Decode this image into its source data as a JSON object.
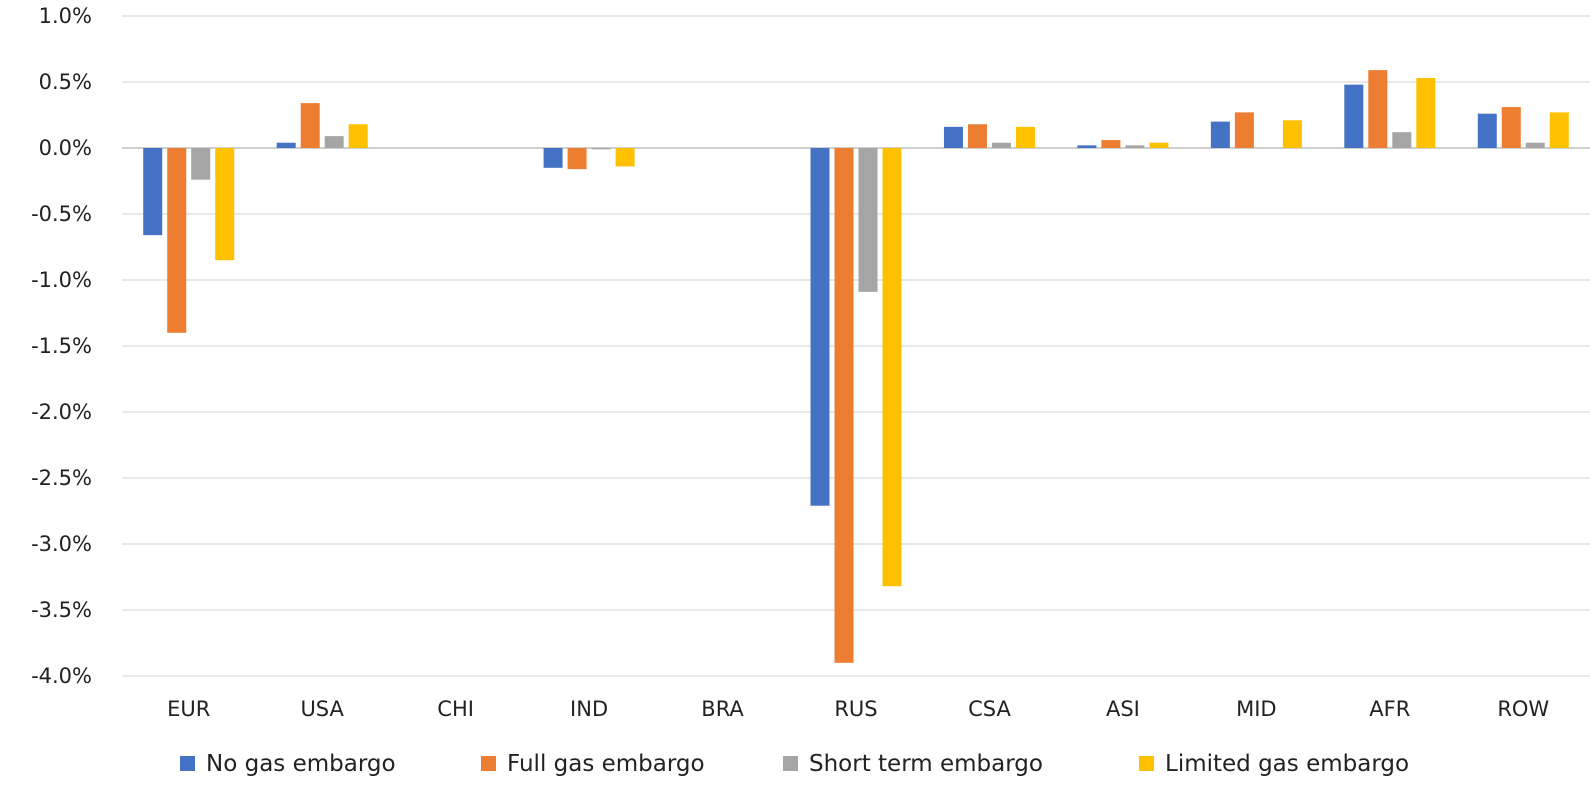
{
  "chart_data": {
    "type": "bar",
    "title": "",
    "xlabel": "",
    "ylabel": "",
    "categories": [
      "EUR",
      "USA",
      "CHI",
      "IND",
      "BRA",
      "RUS",
      "CSA",
      "ASI",
      "MID",
      "AFR",
      "ROW"
    ],
    "series": [
      {
        "name": "No gas embargo",
        "color": "#4472C4",
        "values": [
          -0.66,
          0.04,
          null,
          -0.15,
          null,
          -2.71,
          0.16,
          0.02,
          0.2,
          0.48,
          0.26
        ]
      },
      {
        "name": "Full gas embargo",
        "color": "#ED7D31",
        "values": [
          -1.4,
          0.34,
          null,
          -0.16,
          null,
          -3.9,
          0.18,
          0.06,
          0.27,
          0.59,
          0.31
        ]
      },
      {
        "name": "Short term embargo",
        "color": "#A5A5A5",
        "values": [
          -0.24,
          0.09,
          null,
          -0.01,
          null,
          -1.09,
          0.04,
          0.02,
          null,
          0.12,
          0.04
        ]
      },
      {
        "name": "Limited gas embargo",
        "color": "#FFC000",
        "values": [
          -0.85,
          0.18,
          null,
          -0.14,
          null,
          -3.32,
          0.16,
          0.04,
          0.21,
          0.53,
          0.27
        ]
      }
    ],
    "ylim": [
      -4.0,
      1.0
    ],
    "yticks": [
      "1.0%",
      "0.5%",
      "0.0%",
      "-0.5%",
      "-1.0%",
      "-1.5%",
      "-2.0%",
      "-2.5%",
      "-3.0%",
      "-3.5%",
      "-4.0%"
    ],
    "ytick_values": [
      1.0,
      0.5,
      0.0,
      -0.5,
      -1.0,
      -1.5,
      -2.0,
      -2.5,
      -3.0,
      -3.5,
      -4.0
    ],
    "grid": true,
    "legend_position": "bottom"
  }
}
